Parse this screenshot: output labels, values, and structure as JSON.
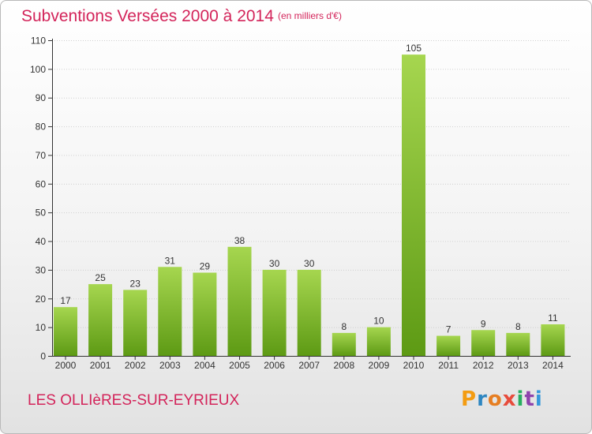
{
  "header": {
    "title": "Subventions Versées 2000 à 2014",
    "unit": "(en milliers d'€)"
  },
  "footer": {
    "commune": "LES OLLIèRES-SUR-EYRIEUX",
    "logo": "Proxiti",
    "logo_letter_colors": [
      "#f39c12",
      "#2e86c1",
      "#e67e22",
      "#e74c3c",
      "#27ae60",
      "#8e44ad",
      "#3498db"
    ]
  },
  "colors": {
    "title": "#d3245a",
    "bar_light": "#9fd24a",
    "bar_dark": "#5d9a14",
    "grid": "#d0d0d0",
    "axis": "#333333"
  },
  "chart_data": {
    "type": "bar",
    "title": "Subventions Versées 2000 à 2014",
    "subtitle": "(en milliers d'€)",
    "xlabel": "",
    "ylabel": "",
    "categories": [
      "2000",
      "2001",
      "2002",
      "2003",
      "2004",
      "2005",
      "2006",
      "2007",
      "2008",
      "2009",
      "2010",
      "2011",
      "2012",
      "2013",
      "2014"
    ],
    "values": [
      17,
      25,
      23,
      31,
      29,
      38,
      30,
      30,
      8,
      10,
      105,
      7,
      9,
      8,
      11
    ],
    "ylim": [
      0,
      110
    ],
    "yticks": [
      0,
      10,
      20,
      30,
      40,
      50,
      60,
      70,
      80,
      90,
      100,
      110
    ],
    "grid": "horizontal",
    "legend": "none"
  }
}
